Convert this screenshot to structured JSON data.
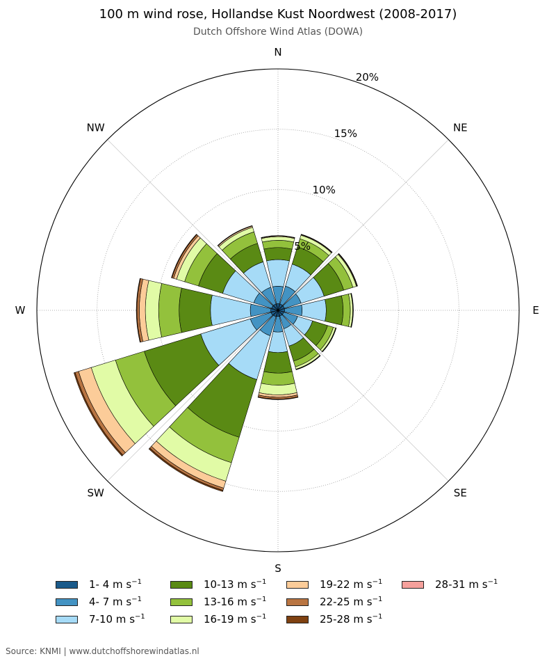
{
  "title": "100 m wind rose, Hollandse Kust Noordwest (2008-2017)",
  "subtitle": "Dutch Offshore Wind Atlas (DOWA)",
  "source": "Source: KNMI | www.dutchoffshorewindatlas.nl",
  "chart_data": {
    "type": "wind-rose (stacked polar bar)",
    "radial_unit": "%",
    "radial_ticks": [
      "5%",
      "10%",
      "15%",
      "20%"
    ],
    "radial_tick_values": [
      5,
      10,
      15,
      20
    ],
    "rlim": [
      0,
      20
    ],
    "grid": true,
    "direction_labels": [
      "N",
      "NE",
      "E",
      "SE",
      "S",
      "SW",
      "W",
      "NW"
    ],
    "direction_label_angles": [
      0,
      45,
      90,
      135,
      180,
      225,
      270,
      315
    ],
    "sector_centers_deg": [
      0,
      30,
      60,
      90,
      120,
      150,
      180,
      210,
      240,
      270,
      300,
      330
    ],
    "speed_bins": [
      {
        "label": "1- 4 m s",
        "sup": "−1",
        "color": "#1a5a8a"
      },
      {
        "label": "4- 7 m s",
        "sup": "−1",
        "color": "#4393c3"
      },
      {
        "label": "7-10 m s",
        "sup": "−1",
        "color": "#a6dbf7"
      },
      {
        "label": "10-13 m s",
        "sup": "−1",
        "color": "#5a8a14"
      },
      {
        "label": "13-16 m s",
        "sup": "−1",
        "color": "#93c13c"
      },
      {
        "label": "16-19 m s",
        "sup": "−1",
        "color": "#e1fba6"
      },
      {
        "label": "19-22 m s",
        "sup": "−1",
        "color": "#fccc99"
      },
      {
        "label": "22-25 m s",
        "sup": "−1",
        "color": "#b97542"
      },
      {
        "label": "25-28 m s",
        "sup": "−1",
        "color": "#7f4111"
      },
      {
        "label": "28-31 m s",
        "sup": "−1",
        "color": "#f5a09c"
      }
    ],
    "cumulative_percent_by_sector": [
      [
        0.55,
        2.0,
        4.2,
        5.2,
        5.8,
        6.1,
        6.15,
        6.18,
        6.19,
        6.19
      ],
      [
        0.55,
        2.1,
        4.0,
        5.5,
        6.2,
        6.5,
        6.55,
        6.58,
        6.59,
        6.59
      ],
      [
        0.55,
        2.0,
        4.0,
        5.7,
        6.5,
        6.8,
        6.85,
        6.88,
        6.9,
        6.9
      ],
      [
        0.55,
        2.0,
        4.0,
        5.4,
        6.0,
        6.2,
        6.22,
        6.24,
        6.25,
        6.25
      ],
      [
        0.5,
        1.7,
        3.0,
        4.3,
        4.8,
        5.0,
        5.02,
        5.04,
        5.05,
        5.05
      ],
      [
        0.5,
        1.6,
        3.1,
        4.4,
        4.9,
        5.1,
        5.12,
        5.14,
        5.15,
        5.15
      ],
      [
        0.5,
        1.8,
        3.5,
        5.2,
        6.2,
        7.0,
        7.2,
        7.35,
        7.4,
        7.4
      ],
      [
        0.55,
        2.2,
        6.0,
        11.0,
        13.2,
        14.8,
        15.4,
        15.6,
        15.7,
        15.7
      ],
      [
        0.6,
        2.4,
        6.7,
        11.6,
        14.1,
        16.2,
        17.3,
        17.6,
        17.7,
        17.7
      ],
      [
        0.6,
        2.3,
        5.6,
        8.2,
        9.9,
        11.0,
        11.5,
        11.7,
        11.75,
        11.75
      ],
      [
        0.55,
        2.1,
        4.8,
        6.9,
        8.1,
        8.8,
        9.05,
        9.2,
        9.25,
        9.25
      ],
      [
        0.55,
        2.0,
        4.2,
        5.8,
        6.8,
        7.2,
        7.3,
        7.33,
        7.34,
        7.34
      ]
    ]
  }
}
